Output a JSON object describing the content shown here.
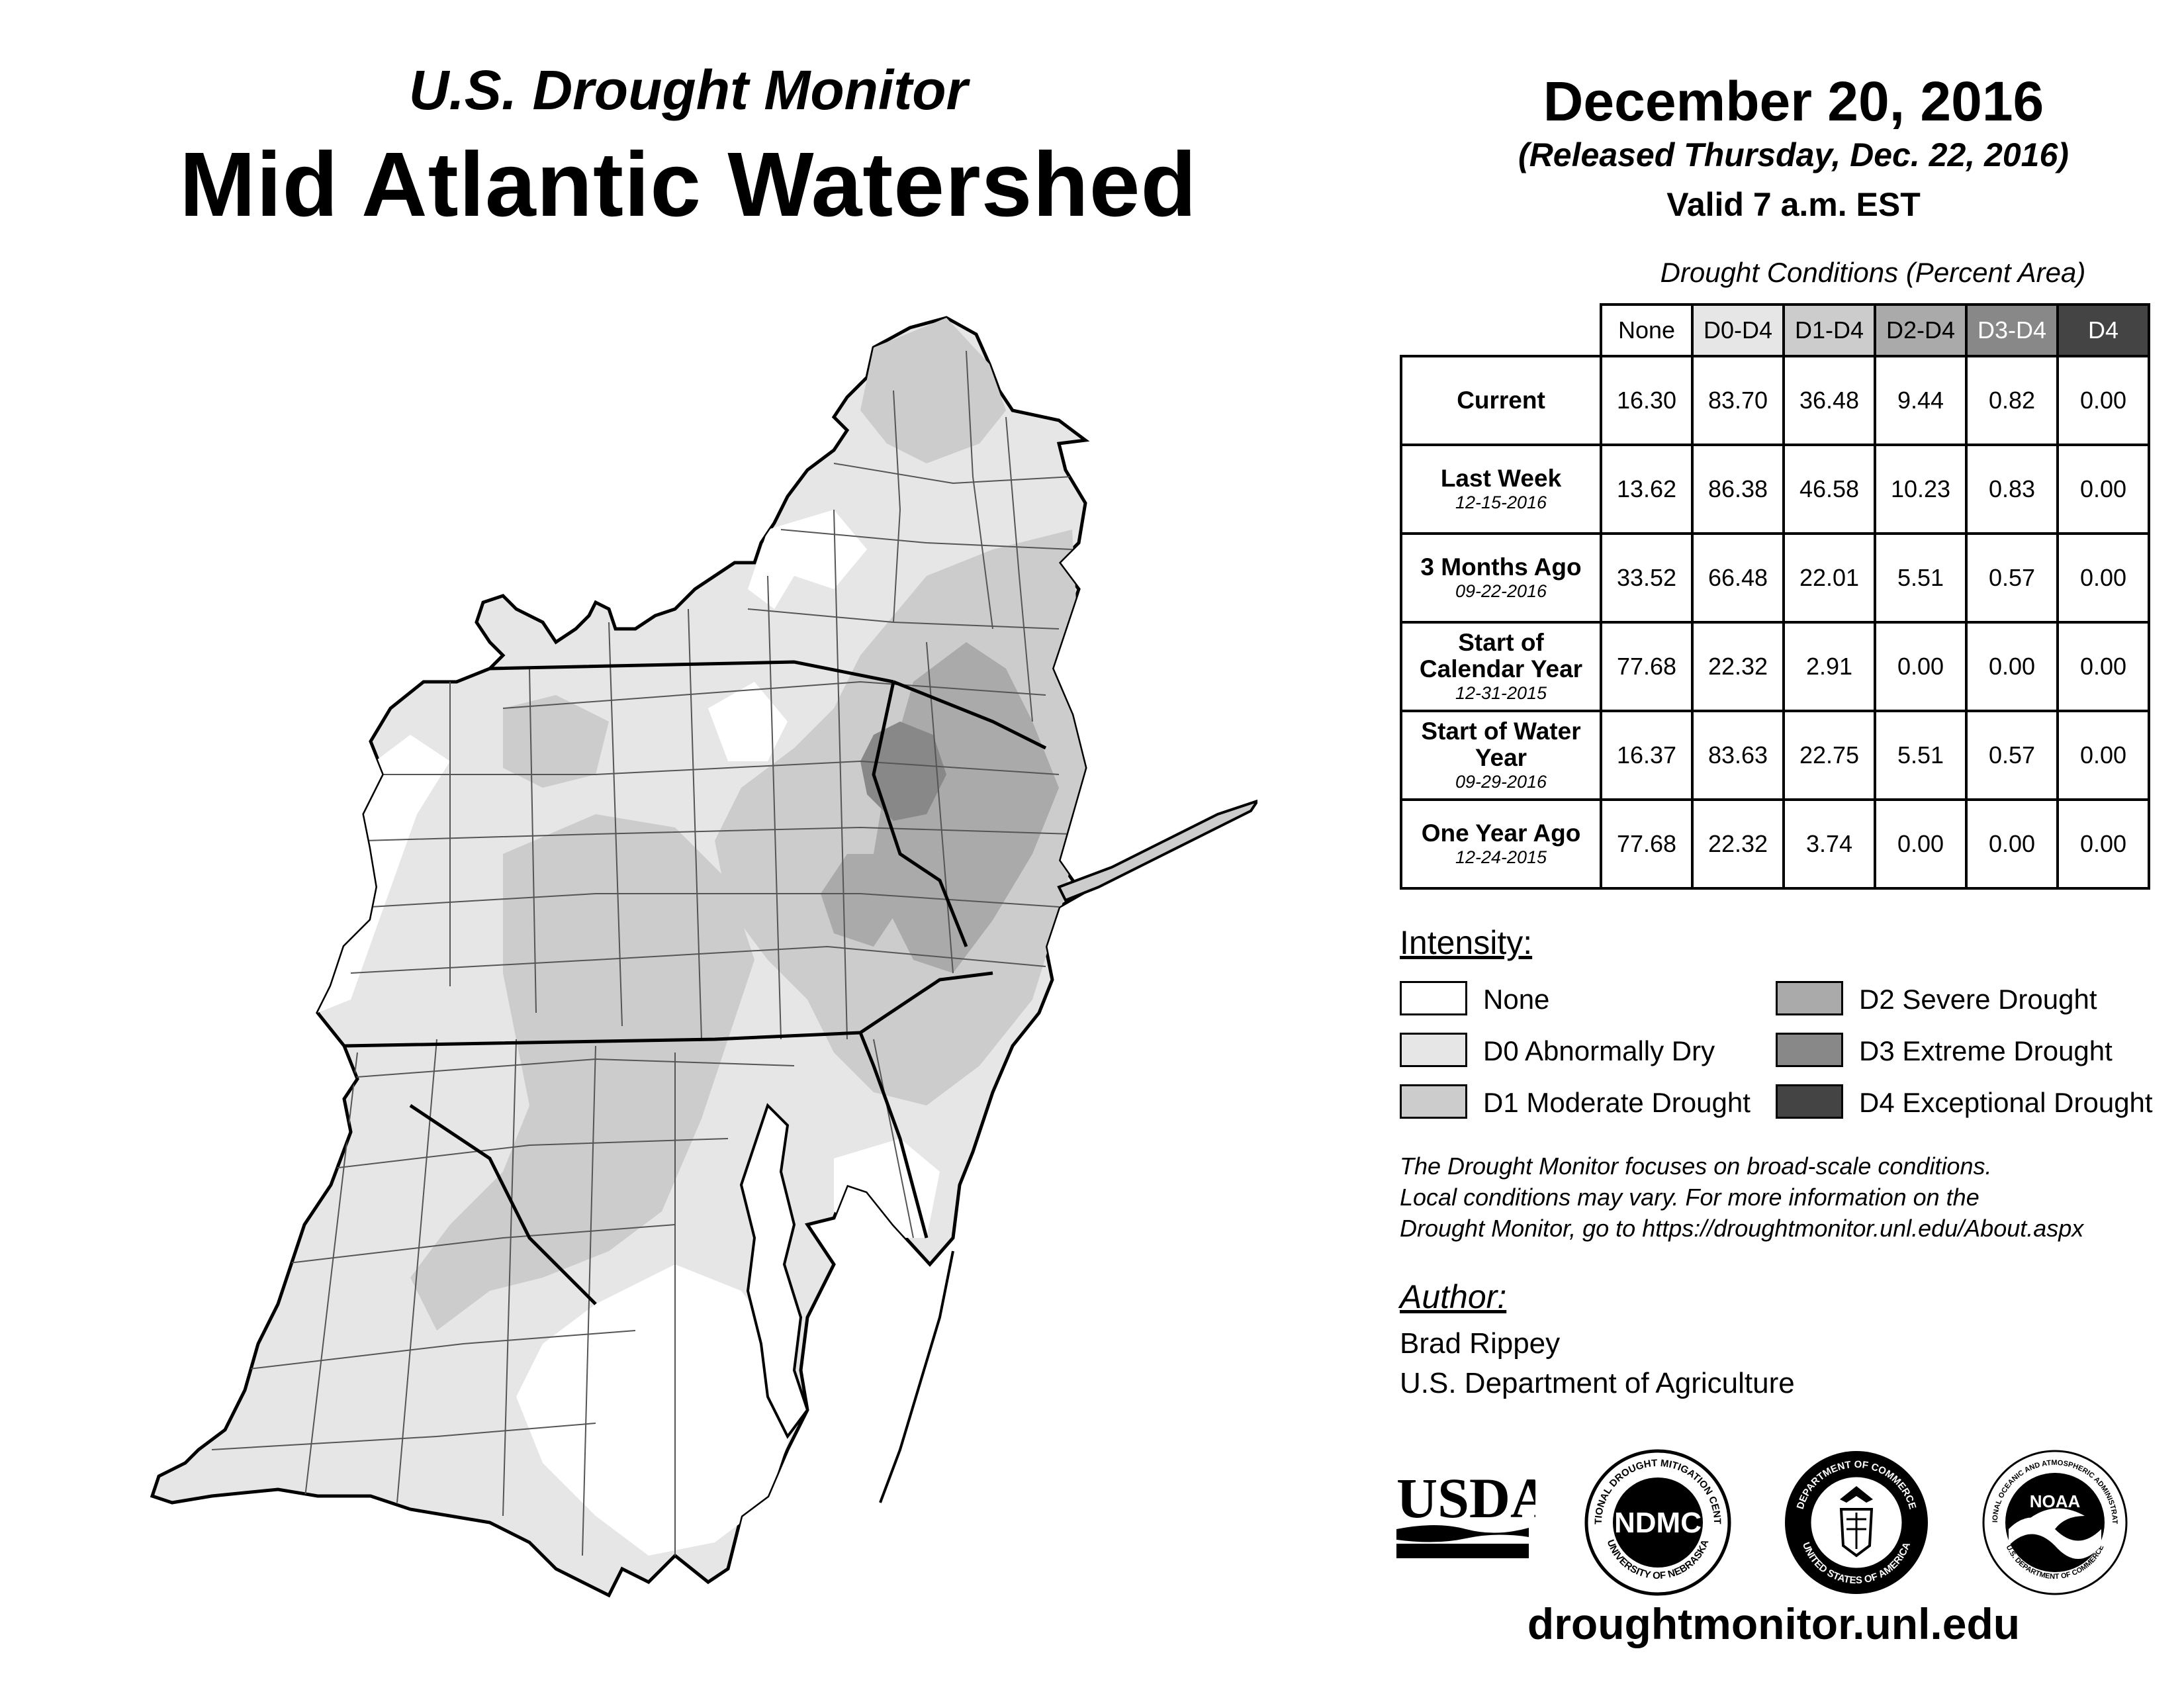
{
  "header": {
    "subtitle": "U.S. Drought Monitor",
    "title": "Mid Atlantic Watershed",
    "date": "December 20, 2016",
    "released": "(Released Thursday, Dec. 22, 2016)",
    "valid": "Valid 7 a.m. EST"
  },
  "table": {
    "caption": "Drought Conditions (Percent Area)",
    "columns": [
      "None",
      "D0-D4",
      "D1-D4",
      "D2-D4",
      "D3-D4",
      "D4"
    ],
    "rows": [
      {
        "label": "Current",
        "date": "",
        "values": [
          "16.30",
          "83.70",
          "36.48",
          "9.44",
          "0.82",
          "0.00"
        ]
      },
      {
        "label": "Last Week",
        "date": "12-15-2016",
        "values": [
          "13.62",
          "86.38",
          "46.58",
          "10.23",
          "0.83",
          "0.00"
        ]
      },
      {
        "label": "3 Months Ago",
        "date": "09-22-2016",
        "values": [
          "33.52",
          "66.48",
          "22.01",
          "5.51",
          "0.57",
          "0.00"
        ]
      },
      {
        "label": "Start of Calendar Year",
        "date": "12-31-2015",
        "values": [
          "77.68",
          "22.32",
          "2.91",
          "0.00",
          "0.00",
          "0.00"
        ]
      },
      {
        "label": "Start of Water Year",
        "date": "09-29-2016",
        "values": [
          "16.37",
          "83.63",
          "22.75",
          "5.51",
          "0.57",
          "0.00"
        ]
      },
      {
        "label": "One Year Ago",
        "date": "12-24-2015",
        "values": [
          "77.68",
          "22.32",
          "3.74",
          "0.00",
          "0.00",
          "0.00"
        ]
      }
    ]
  },
  "legend": {
    "title": "Intensity:",
    "items": [
      {
        "label": "None",
        "color": "#ffffff"
      },
      {
        "label": "D0 Abnormally Dry",
        "color": "#e6e6e6"
      },
      {
        "label": "D1 Moderate Drought",
        "color": "#cccccc"
      },
      {
        "label": "D2 Severe Drought",
        "color": "#aaaaaa"
      },
      {
        "label": "D3 Extreme Drought",
        "color": "#888888"
      },
      {
        "label": "D4 Exceptional Drought",
        "color": "#444444"
      }
    ]
  },
  "note": {
    "line1": "The Drought Monitor focuses on broad-scale conditions.",
    "line2": "Local conditions may vary. For more information on the",
    "line3": "Drought Monitor, go to https://droughtmonitor.unl.edu/About.aspx"
  },
  "author": {
    "title": "Author:",
    "name": "Brad Rippey",
    "org": "U.S. Department of Agriculture"
  },
  "logos": {
    "usda": "USDA",
    "ndmc": "NDMC",
    "ndmc_ring_top": "NATIONAL DROUGHT MITIGATION CENTER",
    "ndmc_ring_bottom": "UNIVERSITY OF NEBRASKA",
    "doc_ring_top": "DEPARTMENT OF COMMERCE",
    "doc_ring_bottom": "UNITED STATES OF AMERICA",
    "noaa": "NOAA",
    "noaa_ring_top": "NATIONAL OCEANIC AND ATMOSPHERIC ADMINISTRATION",
    "noaa_ring_bottom": "U.S. DEPARTMENT OF COMMERCE"
  },
  "footer": {
    "website": "droughtmonitor.unl.edu"
  }
}
